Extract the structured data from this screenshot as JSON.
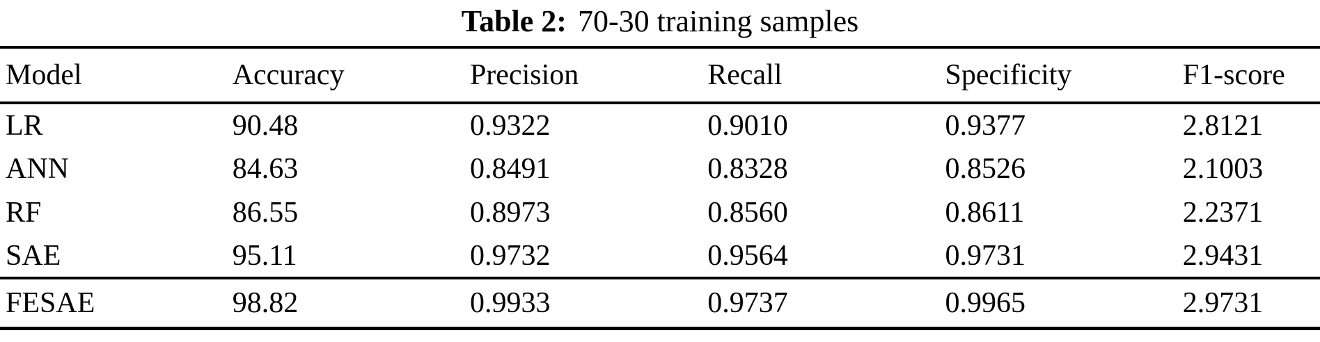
{
  "title": {
    "label": "Table 2:",
    "text": "70-30 training samples"
  },
  "table": {
    "columns": [
      "Model",
      "Accuracy",
      "Precision",
      "Recall",
      "Specificity",
      "F1-score"
    ],
    "rows": [
      {
        "cells": [
          "LR",
          "90.48",
          "0.9322",
          "0.9010",
          "0.9377",
          "2.8121"
        ],
        "emphasis": false
      },
      {
        "cells": [
          "ANN",
          "84.63",
          "0.8491",
          "0.8328",
          "0.8526",
          "2.1003"
        ],
        "emphasis": false
      },
      {
        "cells": [
          "RF",
          "86.55",
          "0.8973",
          "0.8560",
          "0.8611",
          "2.2371"
        ],
        "emphasis": false
      },
      {
        "cells": [
          "SAE",
          "95.11",
          "0.9732",
          "0.9564",
          "0.9731",
          "2.9431"
        ],
        "emphasis": false
      },
      {
        "cells": [
          "FESAE",
          "98.82",
          "0.9933",
          "0.9737",
          "0.9965",
          "2.9731"
        ],
        "emphasis": true
      }
    ]
  },
  "colors": {
    "text": "#000000",
    "background": "#ffffff",
    "rule": "#000000"
  }
}
